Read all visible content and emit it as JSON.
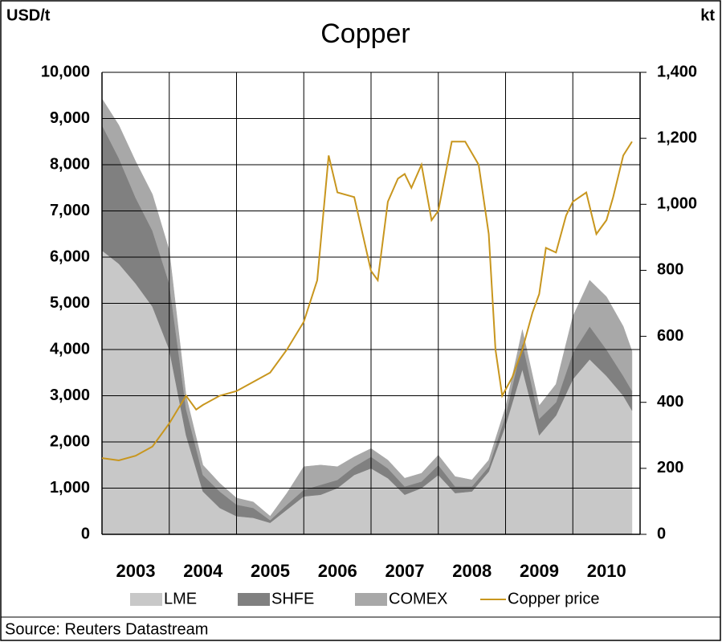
{
  "chart_data": {
    "type": "area",
    "title": "Copper",
    "y_label": "USD/t",
    "y2_label": "kt",
    "source": "Source: Reuters Datastream",
    "xlim": [
      2003,
      2011
    ],
    "xticks": [
      2003,
      2004,
      2005,
      2006,
      2007,
      2008,
      2009,
      2010
    ],
    "ylim": [
      0,
      10000
    ],
    "yticks": [
      0,
      {
        "value": 1000,
        "label": "1,000"
      },
      {
        "value": 2000,
        "label": "2,000"
      },
      {
        "value": 3000,
        "label": "3,000"
      },
      {
        "value": 4000,
        "label": "4,000"
      },
      {
        "value": 5000,
        "label": "5,000"
      },
      {
        "value": 6000,
        "label": "6,000"
      },
      {
        "value": 7000,
        "label": "7,000"
      },
      {
        "value": 8000,
        "label": "8,000"
      },
      {
        "value": 9000,
        "label": "9,000"
      },
      {
        "value": 10000,
        "label": "10,000"
      }
    ],
    "y2lim": [
      0,
      1400
    ],
    "y2ticks": [
      0,
      200,
      400,
      600,
      800,
      {
        "value": 1000,
        "label": "1,000"
      },
      {
        "value": 1200,
        "label": "1,200"
      },
      {
        "value": 1400,
        "label": "1,400"
      }
    ],
    "grid": true,
    "x": [
      2003.0,
      2003.25,
      2003.5,
      2003.75,
      2004.0,
      2004.25,
      2004.5,
      2004.75,
      2005.0,
      2005.25,
      2005.5,
      2005.75,
      2006.0,
      2006.25,
      2006.5,
      2006.75,
      2007.0,
      2007.25,
      2007.5,
      2007.75,
      2008.0,
      2008.25,
      2008.5,
      2008.75,
      2009.0,
      2009.25,
      2009.5,
      2009.75,
      2010.0,
      2010.25,
      2010.5,
      2010.75,
      2010.88
    ],
    "series": [
      {
        "name": "LME",
        "color": "#c8c8c8",
        "axis": "y2",
        "values": [
          860,
          820,
          760,
          690,
          560,
          300,
          130,
          80,
          55,
          50,
          35,
          75,
          115,
          120,
          140,
          180,
          200,
          170,
          120,
          140,
          180,
          125,
          130,
          190,
          330,
          500,
          300,
          360,
          470,
          530,
          480,
          420,
          375
        ]
      },
      {
        "name": "SHFE",
        "color": "#808080",
        "axis": "y2",
        "values": [
          380,
          320,
          260,
          230,
          200,
          80,
          50,
          50,
          35,
          30,
          8,
          15,
          20,
          30,
          25,
          25,
          35,
          30,
          25,
          20,
          30,
          20,
          15,
          15,
          30,
          80,
          50,
          40,
          80,
          100,
          80,
          60,
          60
        ]
      },
      {
        "name": "COMEX",
        "color": "#a8a8a8",
        "axis": "y2",
        "values": [
          80,
          100,
          110,
          110,
          100,
          40,
          30,
          25,
          20,
          18,
          12,
          35,
          70,
          60,
          40,
          30,
          25,
          25,
          25,
          25,
          30,
          30,
          20,
          20,
          25,
          40,
          40,
          55,
          110,
          140,
          160,
          150,
          120
        ]
      },
      {
        "name": "Copper price",
        "color": "#c8961e",
        "axis": "y",
        "type": "line",
        "x": [
          2003.0,
          2003.25,
          2003.5,
          2003.75,
          2004.0,
          2004.25,
          2004.4,
          2004.5,
          2004.75,
          2005.0,
          2005.25,
          2005.5,
          2005.75,
          2006.0,
          2006.2,
          2006.37,
          2006.5,
          2006.75,
          2007.0,
          2007.1,
          2007.25,
          2007.4,
          2007.5,
          2007.6,
          2007.75,
          2007.9,
          2008.0,
          2008.2,
          2008.4,
          2008.6,
          2008.75,
          2008.85,
          2008.95,
          2009.1,
          2009.25,
          2009.4,
          2009.5,
          2009.6,
          2009.75,
          2009.9,
          2010.0,
          2010.2,
          2010.35,
          2010.5,
          2010.6,
          2010.75,
          2010.88
        ],
        "values": [
          1650,
          1600,
          1700,
          1900,
          2400,
          3000,
          2700,
          2800,
          3000,
          3100,
          3300,
          3500,
          4000,
          4600,
          5500,
          8200,
          7400,
          7300,
          5700,
          5500,
          7200,
          7700,
          7800,
          7500,
          8000,
          6800,
          7000,
          8500,
          8500,
          8000,
          6500,
          4000,
          3000,
          3400,
          4000,
          4800,
          5200,
          6200,
          6100,
          6900,
          7200,
          7400,
          6500,
          6800,
          7300,
          8200,
          8500
        ]
      }
    ]
  }
}
